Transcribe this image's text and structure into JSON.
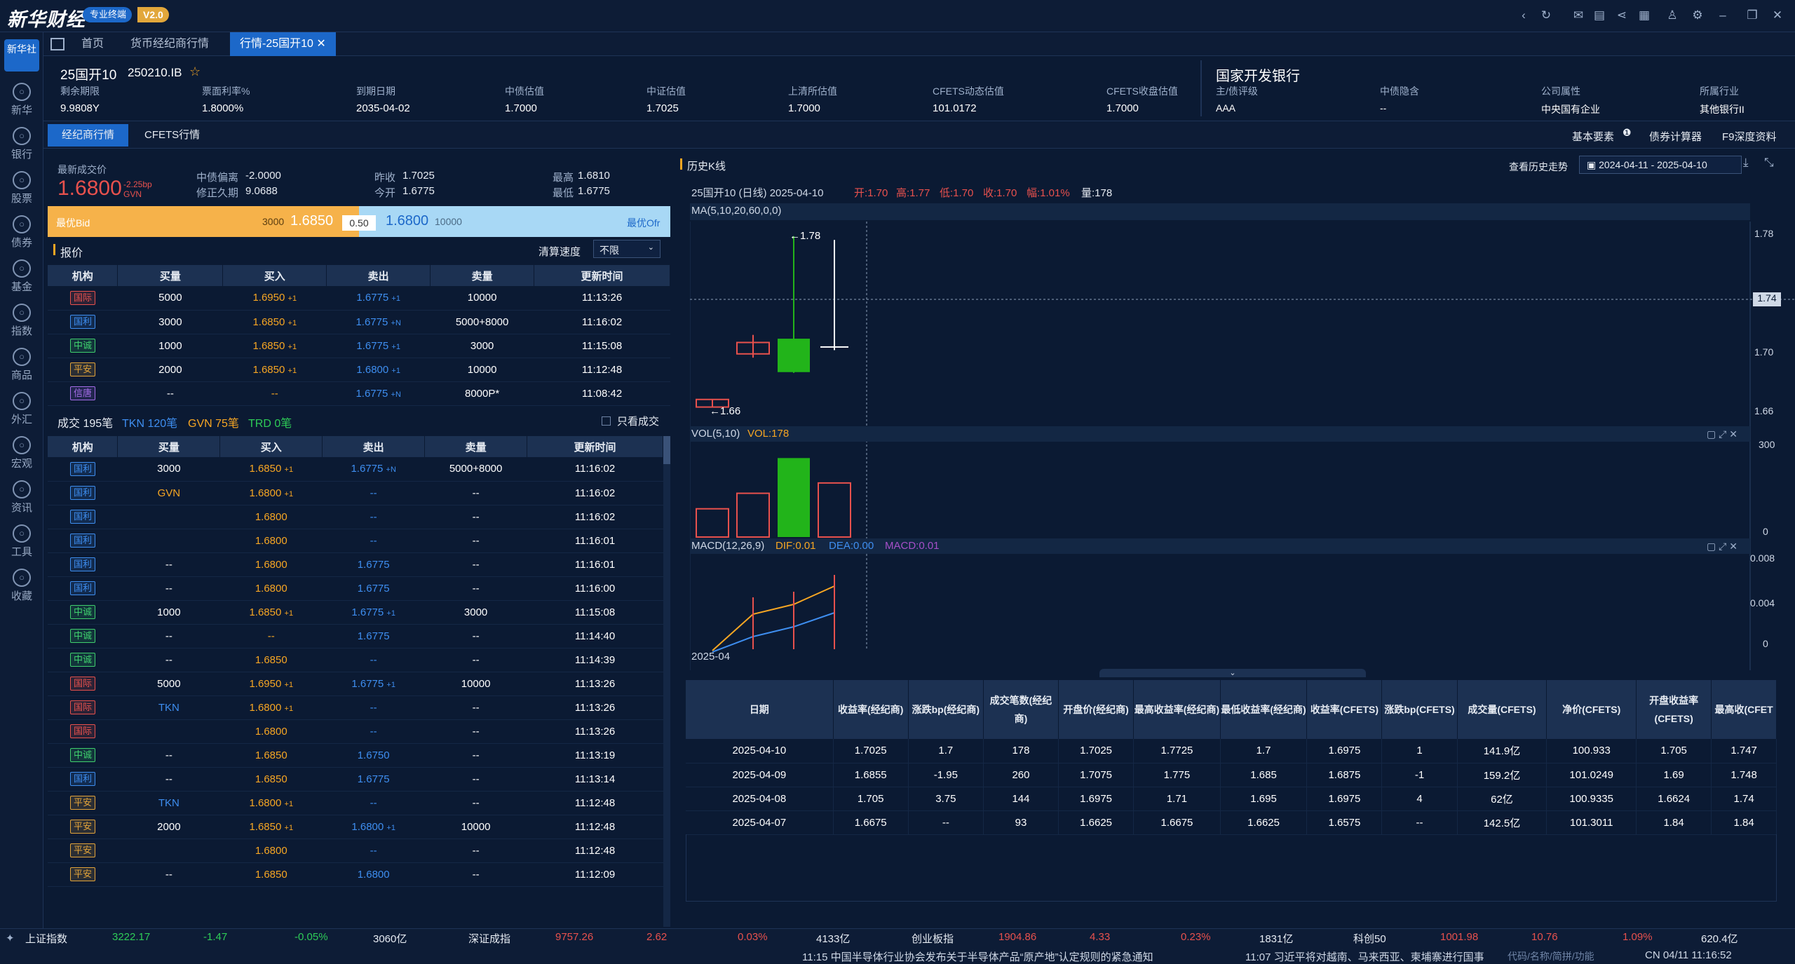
{
  "app": {
    "logo": "新华财经",
    "badge": "专业终端",
    "version": "V2.0"
  },
  "sidebar": {
    "top": "新华社",
    "items": [
      "新华",
      "银行",
      "股票",
      "债券",
      "基金",
      "指数",
      "商品",
      "外汇",
      "宏观",
      "资讯",
      "工具",
      "收藏"
    ]
  },
  "tabs": [
    "首页",
    "货币经纪商行情",
    "行情-25国开10"
  ],
  "bond": {
    "name": "25国开10",
    "code": "250210.IB",
    "issuer": "国家开发银行",
    "fields": [
      {
        "l": "剩余期限",
        "v": "9.9808Y"
      },
      {
        "l": "票面利率%",
        "v": "1.8000%"
      },
      {
        "l": "到期日期",
        "v": "2035-04-02"
      },
      {
        "l": "中债估值",
        "v": "1.7000"
      },
      {
        "l": "中证估值",
        "v": "1.7025"
      },
      {
        "l": "上清所估值",
        "v": "1.7000"
      },
      {
        "l": "CFETS动态估值",
        "v": "101.0172"
      },
      {
        "l": "CFETS收盘估值",
        "v": "1.7000"
      }
    ],
    "right": [
      {
        "l": "主/债评级",
        "v": "AAA"
      },
      {
        "l": "中债隐含",
        "v": "--"
      },
      {
        "l": "公司属性",
        "v": "中央国有企业"
      },
      {
        "l": "所属行业",
        "v": "其他银行II"
      }
    ]
  },
  "subtabs": [
    "经纪商行情",
    "CFETS行情"
  ],
  "rightlinks": [
    "基本要素",
    "债券计算器",
    "F9深度资料"
  ],
  "quote": {
    "last_label": "最新成交价",
    "last": "1.6800",
    "chg": "-2.25bp",
    "src": "GVN",
    "dev_l": "中债偏离",
    "dev": "-2.0000",
    "dur_l": "修正久期",
    "dur": "9.0688",
    "pc_l": "昨收",
    "pc": "1.7025",
    "op_l": "今开",
    "op": "1.6775",
    "hi_l": "最高",
    "hi": "1.6810",
    "lo_l": "最低",
    "lo": "1.6775",
    "bid_l": "最优Bid",
    "bid_vol": "3000",
    "bid": "1.6850",
    "spread": "0.50",
    "ofr": "1.6800",
    "ofr_vol": "10000",
    "ofr_l": "最优Ofr"
  },
  "quotes_title": "报价",
  "settle_l": "清算速度",
  "settle_v": "不限",
  "cols": [
    "机构",
    "买量",
    "买入",
    "卖出",
    "卖量",
    "更新时间"
  ],
  "quotes": [
    [
      "国际",
      "r",
      "5000",
      "1.6950",
      "+1",
      "1.6775",
      "+1",
      "10000",
      "11:13:26"
    ],
    [
      "国利",
      "b",
      "3000",
      "1.6850",
      "+1",
      "1.6775",
      "+N",
      "5000+8000",
      "11:16:02"
    ],
    [
      "中诚",
      "g",
      "1000",
      "1.6850",
      "+1",
      "1.6775",
      "+1",
      "3000",
      "11:15:08"
    ],
    [
      "平安",
      "y",
      "2000",
      "1.6850",
      "+1",
      "1.6800",
      "+1",
      "10000",
      "11:12:48"
    ],
    [
      "信唐",
      "p",
      "--",
      "--",
      "",
      "1.6775",
      "+N",
      "8000P*",
      "11:08:42"
    ]
  ],
  "trades_title": "成交 195笔",
  "tkn": "TKN 120笔",
  "gvn": "GVN 75笔",
  "trd": "TRD 0笔",
  "only_l": "只看成交",
  "trades": [
    [
      "国利",
      "b",
      "3000",
      "1.6850",
      "+1",
      "1.6775",
      "+N",
      "5000+8000",
      "11:16:02"
    ],
    [
      "国利",
      "b",
      "GVN",
      "1.6800",
      "+1",
      "--",
      "",
      "--",
      "11:16:02"
    ],
    [
      "国利",
      "b",
      "",
      "1.6800",
      "",
      "--",
      "",
      "--",
      "11:16:02"
    ],
    [
      "国利",
      "b",
      "",
      "1.6800",
      "",
      "--",
      "",
      "--",
      "11:16:01"
    ],
    [
      "国利",
      "b",
      "--",
      "1.6800",
      "",
      "1.6775",
      "",
      "--",
      "11:16:01"
    ],
    [
      "国利",
      "b",
      "--",
      "1.6800",
      "",
      "1.6775",
      "",
      "--",
      "11:16:00"
    ],
    [
      "中诚",
      "g",
      "1000",
      "1.6850",
      "+1",
      "1.6775",
      "+1",
      "3000",
      "11:15:08"
    ],
    [
      "中诚",
      "g",
      "--",
      "--",
      "",
      "1.6775",
      "",
      "--",
      "11:14:40"
    ],
    [
      "中诚",
      "g",
      "--",
      "1.6850",
      "",
      "--",
      "",
      "--",
      "11:14:39"
    ],
    [
      "国际",
      "r",
      "5000",
      "1.6950",
      "+1",
      "1.6775",
      "+1",
      "10000",
      "11:13:26"
    ],
    [
      "国际",
      "r",
      "TKN",
      "1.6800",
      "+1",
      "--",
      "",
      "--",
      "11:13:26"
    ],
    [
      "国际",
      "r",
      "",
      "1.6800",
      "",
      "--",
      "",
      "--",
      "11:13:26"
    ],
    [
      "中诚",
      "g",
      "--",
      "1.6850",
      "",
      "1.6750",
      "",
      "--",
      "11:13:19"
    ],
    [
      "国利",
      "b",
      "--",
      "1.6850",
      "",
      "1.6775",
      "",
      "--",
      "11:13:14"
    ],
    [
      "平安",
      "y",
      "TKN",
      "1.6800",
      "+1",
      "--",
      "",
      "--",
      "11:12:48"
    ],
    [
      "平安",
      "y",
      "2000",
      "1.6850",
      "+1",
      "1.6800",
      "+1",
      "10000",
      "11:12:48"
    ],
    [
      "平安",
      "y",
      "",
      "1.6800",
      "",
      "--",
      "",
      "--",
      "11:12:48"
    ],
    [
      "平安",
      "y",
      "--",
      "1.6850",
      "",
      "1.6800",
      "",
      "--",
      "11:12:09"
    ]
  ],
  "kline": {
    "title": "历史K线",
    "hist_l": "查看历史走势",
    "range": "2024-04-11  -  2025-04-10",
    "info": "25国开10 (日线) 2025-04-10",
    "o": "开:1.70",
    "h": "高:1.77",
    "l": "低:1.70",
    "c": "收:1.70",
    "f": "幅:1.01%",
    "v": "量:178",
    "ma": "MA(5,10,20,60,0,0)",
    "max_l": "←1.78",
    "min_l": "←1.66",
    "cur": "1.74",
    "vol_l": "VOL(5,10)",
    "vol_v": "VOL:178",
    "macd_l": "MACD(12,26,9)",
    "dif": "DIF:0.01",
    "dea": "DEA:0.00",
    "macd": "MACD:0.01",
    "date": "2025-04"
  },
  "chart_data": {
    "type": "candlestick",
    "yaxis": [
      "1.78",
      "1.74",
      "1.70",
      "1.66"
    ],
    "vol_axis": [
      "300",
      "0"
    ],
    "macd_axis": [
      "0.008",
      "0.004",
      "0"
    ],
    "candles": [
      {
        "o": 1.6625,
        "c": 1.6675,
        "h": 1.6675,
        "l": 1.6625
      },
      {
        "o": 1.6975,
        "c": 1.705,
        "h": 1.71,
        "l": 1.695
      },
      {
        "o": 1.7075,
        "c": 1.6855,
        "h": 1.775,
        "l": 1.685
      },
      {
        "o": 1.7025,
        "c": 1.7025,
        "h": 1.7725,
        "l": 1.7
      }
    ],
    "vol": [
      93,
      144,
      260,
      178
    ]
  },
  "dtable": {
    "head": [
      "日期",
      "收益率(经纪商)",
      "涨跌bp(经纪商)",
      "成交笔数(经纪商)",
      "开盘价(经纪商)",
      "最高收益率(经纪商)",
      "最低收益率(经纪商)",
      "收益率(CFETS)",
      "涨跌bp(CFETS)",
      "成交量(CFETS)",
      "净价(CFETS)",
      "开盘收益率(CFETS)",
      "最高收(CFET"
    ],
    "rows": [
      [
        "2025-04-10",
        "1.7025",
        "1.7",
        "178",
        "1.7025",
        "1.7725",
        "1.7",
        "1.6975",
        "1",
        "141.9亿",
        "100.933",
        "1.705",
        "1.747"
      ],
      [
        "2025-04-09",
        "1.6855",
        "-1.95",
        "260",
        "1.7075",
        "1.775",
        "1.685",
        "1.6875",
        "-1",
        "159.2亿",
        "101.0249",
        "1.69",
        "1.748"
      ],
      [
        "2025-04-08",
        "1.705",
        "3.75",
        "144",
        "1.6975",
        "1.71",
        "1.695",
        "1.6975",
        "4",
        "62亿",
        "100.9335",
        "1.6624",
        "1.74"
      ],
      [
        "2025-04-07",
        "1.6675",
        "--",
        "93",
        "1.6625",
        "1.6675",
        "1.6625",
        "1.6575",
        "--",
        "142.5亿",
        "101.3011",
        "1.84",
        "1.84"
      ]
    ]
  },
  "status": {
    "sh": [
      "上证指数",
      "3222.17",
      "-1.47",
      "-0.05%",
      "3060亿"
    ],
    "sz": [
      "深证成指",
      "9757.26",
      "2.62",
      "0.03%",
      "4133亿"
    ],
    "cy": [
      "创业板指",
      "1904.86",
      "4.33",
      "0.23%",
      "1831亿"
    ],
    "kc": [
      "科创50",
      "1001.98",
      "10.76",
      "1.09%",
      "620.4亿"
    ],
    "news1": "11:15  中国半导体行业协会发布关于半导体产品“原产地”认定规则的紧急通知",
    "news2": "11:07  习近平将对越南、马来西亚、柬埔寨进行国事",
    "search": "代码/名称/简拼/功能",
    "clock": "CN 04/11 11:16:52"
  },
  "colors": {
    "accent": "#1c68c9",
    "up": "#e8514d",
    "down": "#2ecc57",
    "orange": "#f6a623"
  }
}
